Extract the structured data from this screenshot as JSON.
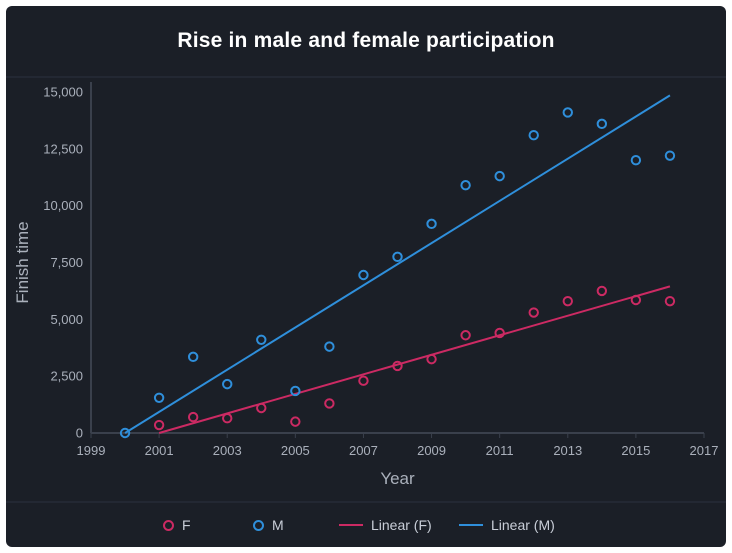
{
  "chart_data": {
    "type": "scatter",
    "title": "Rise in male and female participation",
    "xlabel": "Year",
    "ylabel": "Finish time",
    "xlim": [
      1999,
      2017
    ],
    "ylim": [
      0,
      15000
    ],
    "x_ticks": [
      "1999",
      "2001",
      "2003",
      "2005",
      "2007",
      "2009",
      "2011",
      "2013",
      "2015",
      "2017"
    ],
    "y_ticks": [
      "0",
      "2,500",
      "5,000",
      "7,500",
      "10,000",
      "12,500",
      "15,000"
    ],
    "series": [
      {
        "name": "F",
        "color": "#cc2a63",
        "points": [
          {
            "x": 2001,
            "y": 350
          },
          {
            "x": 2002,
            "y": 700
          },
          {
            "x": 2003,
            "y": 650
          },
          {
            "x": 2004,
            "y": 1100
          },
          {
            "x": 2005,
            "y": 500
          },
          {
            "x": 2006,
            "y": 1300
          },
          {
            "x": 2007,
            "y": 2300
          },
          {
            "x": 2008,
            "y": 2950
          },
          {
            "x": 2009,
            "y": 3250
          },
          {
            "x": 2010,
            "y": 4300
          },
          {
            "x": 2011,
            "y": 4400
          },
          {
            "x": 2012,
            "y": 5300
          },
          {
            "x": 2013,
            "y": 5800
          },
          {
            "x": 2014,
            "y": 6250
          },
          {
            "x": 2015,
            "y": 5850
          },
          {
            "x": 2016,
            "y": 5800
          }
        ]
      },
      {
        "name": "M",
        "color": "#2f8fdb",
        "points": [
          {
            "x": 2000,
            "y": 0
          },
          {
            "x": 2001,
            "y": 1550
          },
          {
            "x": 2002,
            "y": 3350
          },
          {
            "x": 2003,
            "y": 2150
          },
          {
            "x": 2004,
            "y": 4100
          },
          {
            "x": 2005,
            "y": 1850
          },
          {
            "x": 2006,
            "y": 3800
          },
          {
            "x": 2007,
            "y": 6950
          },
          {
            "x": 2008,
            "y": 7750
          },
          {
            "x": 2009,
            "y": 9200
          },
          {
            "x": 2010,
            "y": 10900
          },
          {
            "x": 2011,
            "y": 11300
          },
          {
            "x": 2012,
            "y": 13100
          },
          {
            "x": 2013,
            "y": 14100
          },
          {
            "x": 2014,
            "y": 13600
          },
          {
            "x": 2015,
            "y": 12000
          },
          {
            "x": 2016,
            "y": 12200
          }
        ]
      }
    ],
    "trendlines": [
      {
        "name": "Linear (F)",
        "color": "#cc2a63",
        "x": [
          2001,
          2016
        ],
        "y": [
          0,
          6450
        ]
      },
      {
        "name": "Linear (M)",
        "color": "#2f8fdb",
        "x": [
          2000,
          2016
        ],
        "y": [
          0,
          14850
        ]
      }
    ],
    "legend": {
      "position": "bottom",
      "items": [
        {
          "label": "F",
          "kind": "marker",
          "color": "#cc2a63"
        },
        {
          "label": "M",
          "kind": "marker",
          "color": "#2f8fdb"
        },
        {
          "label": "Linear (F)",
          "kind": "line",
          "color": "#cc2a63"
        },
        {
          "label": "Linear (M)",
          "kind": "line",
          "color": "#2f8fdb"
        }
      ]
    },
    "grid": false
  }
}
